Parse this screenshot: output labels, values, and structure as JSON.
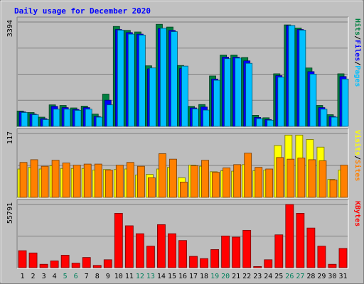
{
  "chart_data": {
    "type": "bar",
    "title": "Daily usage for December 2020",
    "days": [
      "1",
      "2",
      "3",
      "4",
      "5",
      "6",
      "7",
      "8",
      "9",
      "10",
      "11",
      "12",
      "13",
      "14",
      "15",
      "16",
      "17",
      "18",
      "19",
      "20",
      "21",
      "22",
      "23",
      "24",
      "25",
      "26",
      "27",
      "28",
      "29",
      "30",
      "31"
    ],
    "weekend_days": [
      "5",
      "6",
      "12",
      "13",
      "19",
      "20",
      "26",
      "27"
    ],
    "panels": [
      {
        "name": "hits-files-pages",
        "max_label": "3394",
        "ymax": 3394,
        "series": [
          {
            "name": "Hits",
            "color": "#008040",
            "values": [
              500,
              450,
              300,
              700,
              680,
              600,
              660,
              400,
              1050,
              3250,
              3120,
              3070,
              1970,
              3320,
              3230,
              1980,
              650,
              710,
              1640,
              2320,
              2320,
              2240,
              360,
              280,
              1710,
              3300,
              3200,
              1900,
              680,
              380,
              1710
            ]
          },
          {
            "name": "Files",
            "color": "#0000ff",
            "values": [
              470,
              400,
              250,
              650,
              610,
              550,
              610,
              320,
              850,
              3150,
              3050,
              3000,
              1870,
              3180,
              3120,
              1880,
              600,
              630,
              1540,
              2250,
              2250,
              2130,
              290,
              220,
              1650,
              3280,
              3150,
              1780,
              610,
              320,
              1620
            ]
          },
          {
            "name": "Pages",
            "color": "#00c0ff",
            "values": [
              450,
              380,
              220,
              560,
              560,
              520,
              560,
              300,
              700,
              3130,
              3000,
              2970,
              1900,
              3190,
              3080,
              1960,
              570,
              530,
              1500,
              2200,
              2220,
              2050,
              250,
              200,
              1600,
              3280,
              3130,
              1700,
              560,
              300,
              1540
            ]
          }
        ],
        "legend": [
          "Pages",
          "Files",
          "Hits"
        ]
      },
      {
        "name": "visits-sites",
        "max_label": "117",
        "ymax": 117,
        "series": [
          {
            "name": "Visits",
            "color": "#ffff00",
            "values": [
              52,
              55,
              52,
              58,
              53,
              53,
              53,
              50,
              51,
              51,
              52,
              41,
              42,
              52,
              55,
              36,
              59,
              57,
              47,
              49,
              48,
              60,
              49,
              50,
              95,
              114,
              114,
              106,
              92,
              33,
              50
            ]
          },
          {
            "name": "Sites",
            "color": "#ff8000",
            "values": [
              64,
              69,
              57,
              68,
              63,
              59,
              61,
              61,
              50,
              59,
              64,
              57,
              36,
              80,
              70,
              28,
              58,
              68,
              46,
              54,
              60,
              81,
              55,
              52,
              73,
              70,
              72,
              69,
              67,
              32,
              59
            ]
          }
        ],
        "legend": [
          "Sites",
          "Visits"
        ]
      },
      {
        "name": "kbytes",
        "max_label": "55791",
        "ymax": 55791,
        "series": [
          {
            "name": "KBytes",
            "color": "#ff0000",
            "values": [
              15000,
              13000,
              3000,
              6000,
              11000,
              4000,
              9000,
              2000,
              7000,
              48000,
              37000,
              30000,
              19000,
              38000,
              30000,
              24000,
              10000,
              8000,
              16000,
              28000,
              27000,
              33000,
              1000,
              7000,
              29000,
              55791,
              48000,
              35000,
              19000,
              3000,
              17000
            ]
          }
        ],
        "legend": [
          "KBytes"
        ]
      }
    ],
    "legend_separator": "/",
    "colors": {
      "background": "#c0c0c0",
      "plot_bg": "#bdbdbd",
      "title": "#0000ff",
      "weekend_label": "#00805c",
      "weekday_label": "#000000"
    }
  }
}
